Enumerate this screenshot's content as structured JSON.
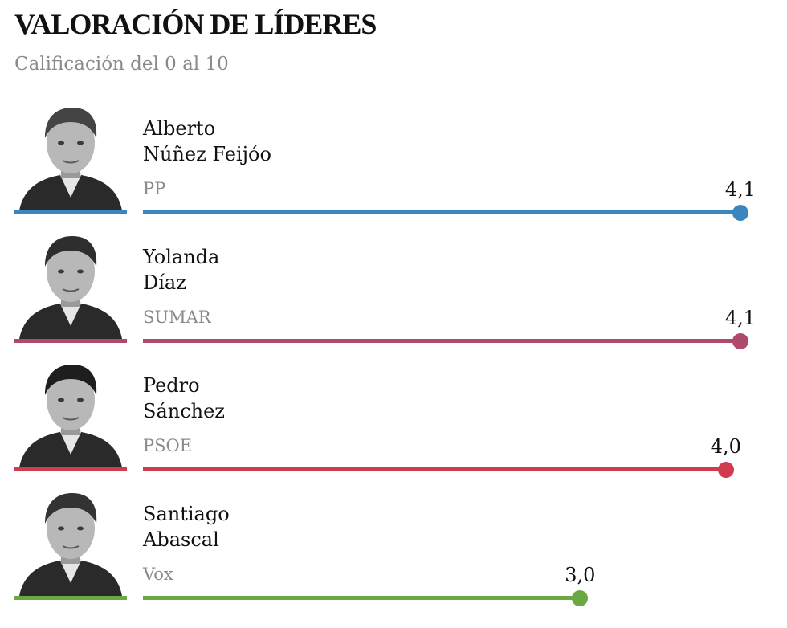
{
  "header": {
    "title": "VALORACIÓN DE LÍDERES",
    "subtitle": "Calificación del 0 al 10"
  },
  "leaders": [
    {
      "first": "Alberto",
      "last": "Núñez Feijóo",
      "party": "PP",
      "value_label": "4,1",
      "color": "#3a87c0",
      "hair": "#444444"
    },
    {
      "first": "Yolanda",
      "last": "Díaz",
      "party": "SUMAR",
      "value_label": "4,1",
      "color": "#b04a6c",
      "hair": "#2e2e2e"
    },
    {
      "first": "Pedro",
      "last": "Sánchez",
      "party": "PSOE",
      "value_label": "4,0",
      "color": "#d13b4f",
      "hair": "#1e1e1e"
    },
    {
      "first": "Santiago",
      "last": "Abascal",
      "party": "Vox",
      "value_label": "3,0",
      "color": "#6ba843",
      "hair": "#333333"
    }
  ],
  "chart_data": {
    "type": "bar",
    "title": "VALORACIÓN DE LÍDERES",
    "subtitle": "Calificación del 0 al 10",
    "categories": [
      "Alberto Núñez Feijóo",
      "Yolanda Díaz",
      "Pedro Sánchez",
      "Santiago Abascal"
    ],
    "parties": [
      "PP",
      "SUMAR",
      "PSOE",
      "Vox"
    ],
    "values": [
      4.1,
      4.1,
      4.0,
      3.0
    ],
    "colors": [
      "#3a87c0",
      "#b04a6c",
      "#d13b4f",
      "#6ba843"
    ],
    "orientation": "horizontal",
    "xlim": [
      0,
      4.1
    ],
    "grid": false,
    "legend": "none"
  }
}
